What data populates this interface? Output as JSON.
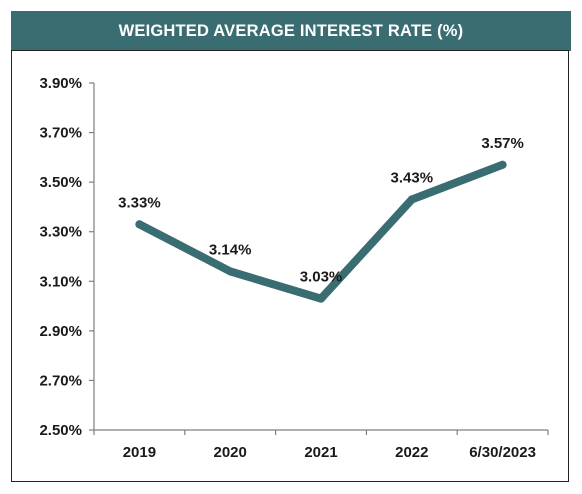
{
  "colors": {
    "accent": "#3a6d72",
    "line": "#3a6d72",
    "axis": "#7f7f7f",
    "text": "#1a1a1a"
  },
  "chart_data": {
    "type": "line",
    "title": "WEIGHTED AVERAGE INTEREST RATE (%)",
    "xlabel": "",
    "ylabel": "",
    "categories": [
      "2019",
      "2020",
      "2021",
      "2022",
      "6/30/2023"
    ],
    "series": [
      {
        "values": [
          3.33,
          3.14,
          3.03,
          3.43,
          3.57
        ],
        "labels": [
          "3.33%",
          "3.14%",
          "3.03%",
          "3.43%",
          "3.57%"
        ]
      }
    ],
    "ylim": [
      2.5,
      3.9
    ],
    "yticks": [
      2.5,
      2.7,
      2.9,
      3.1,
      3.3,
      3.5,
      3.7,
      3.9
    ],
    "ytick_labels": [
      "2.50%",
      "2.70%",
      "2.90%",
      "3.10%",
      "3.30%",
      "3.50%",
      "3.70%",
      "3.90%"
    ],
    "grid": false,
    "legend": "none"
  }
}
